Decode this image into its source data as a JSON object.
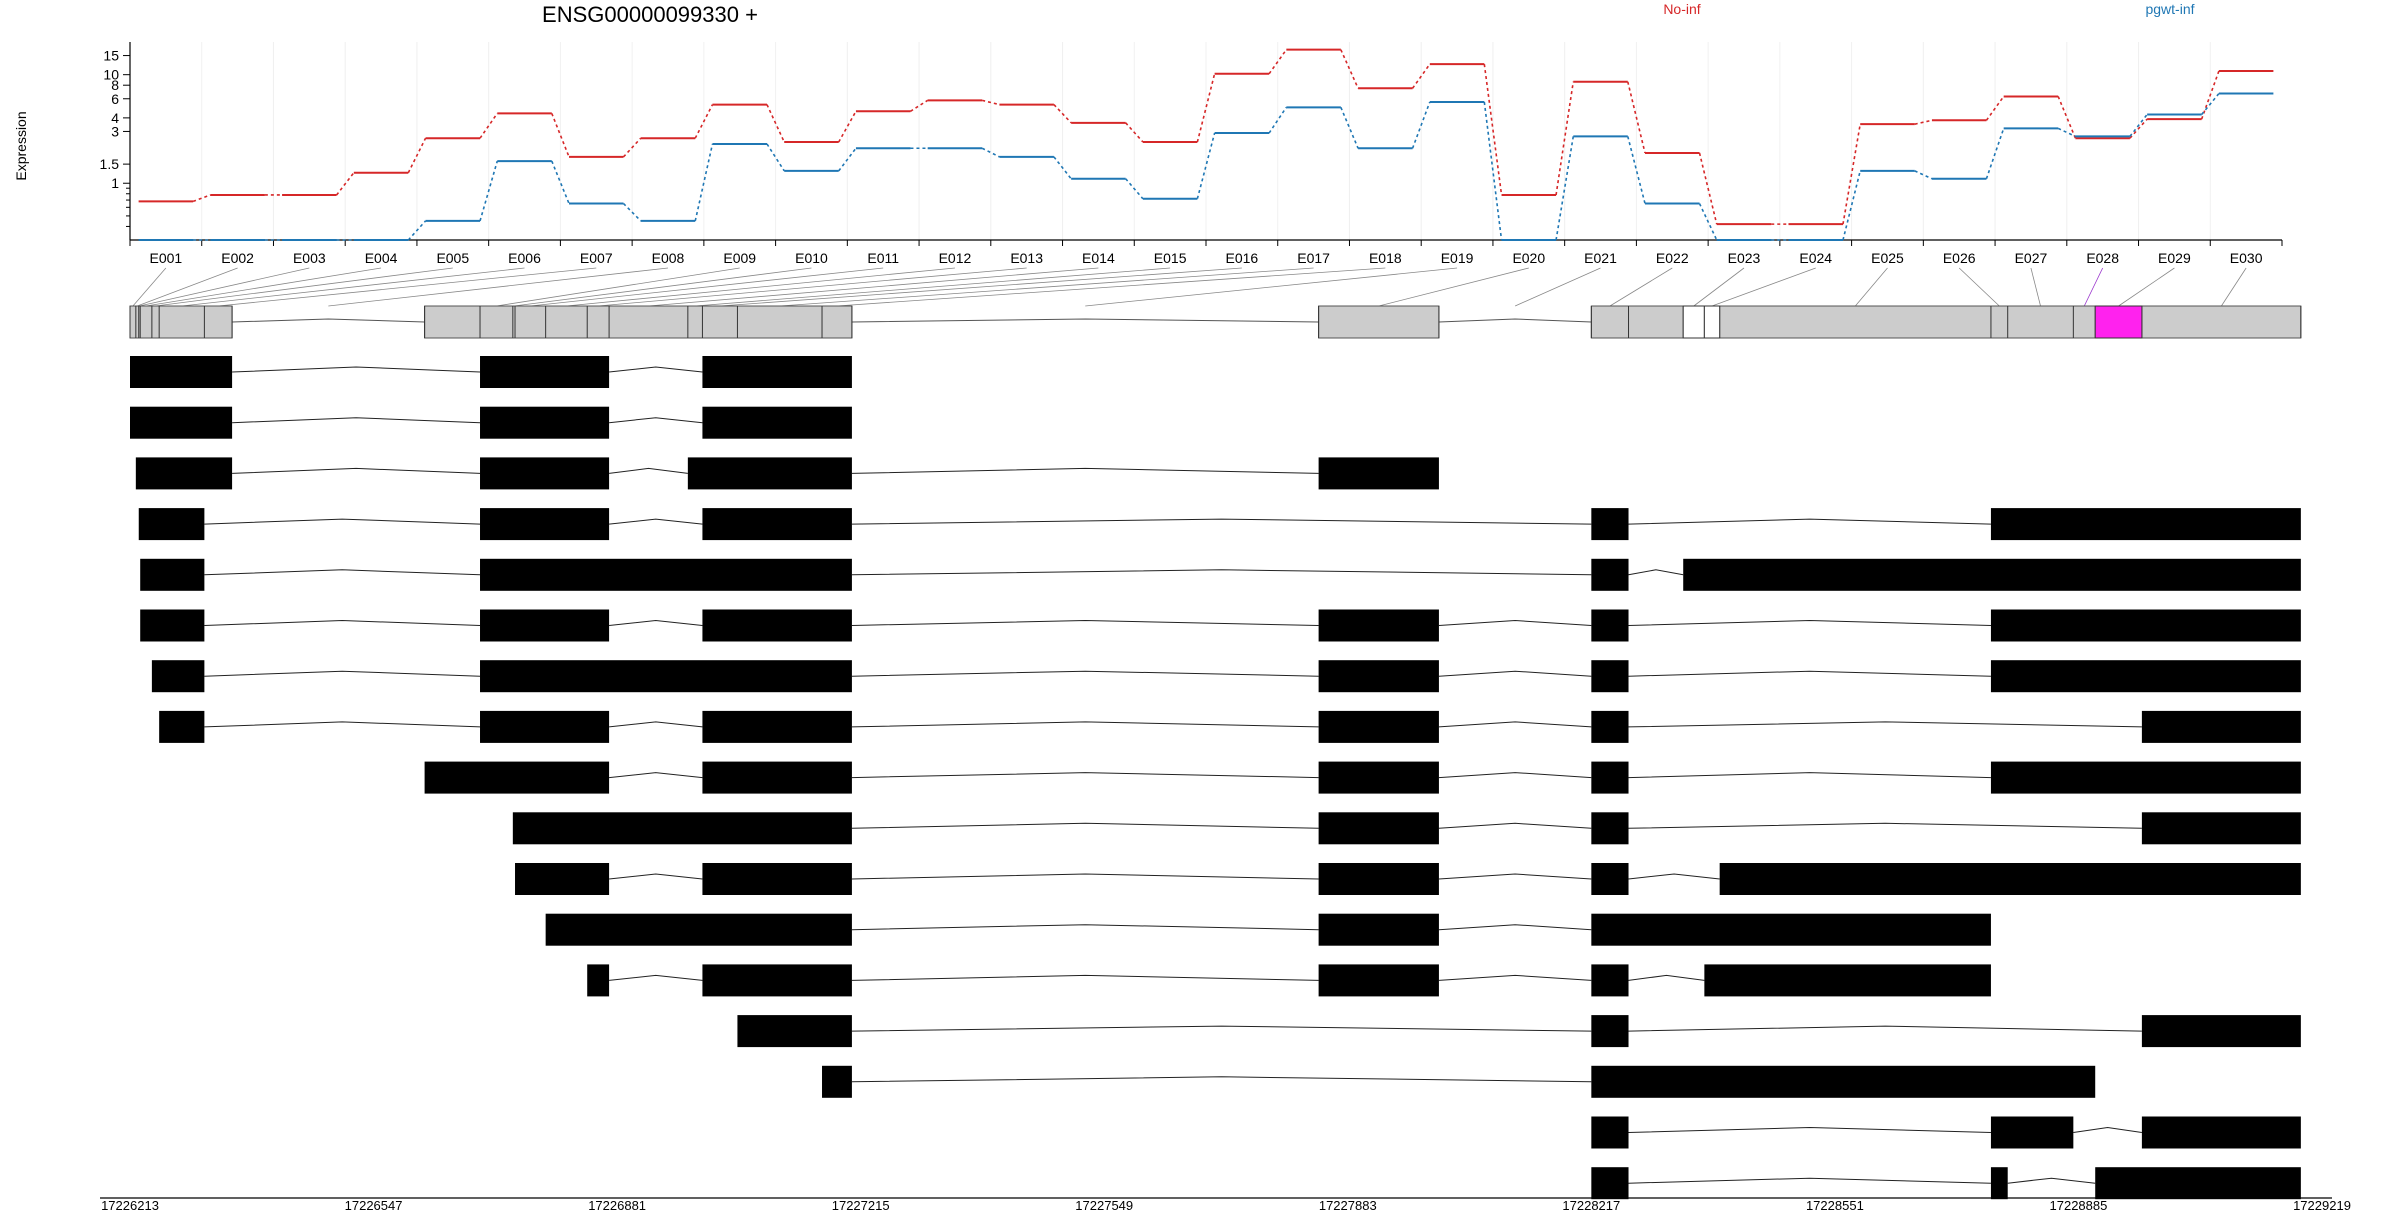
{
  "chart_data": {
    "type": "line",
    "title": "ENSG00000099330 +",
    "ylabel": "Expression",
    "ylim": [
      0.3,
      20
    ],
    "y_scale": "log",
    "y_ticks": [
      1,
      1.5,
      3,
      4,
      6,
      8,
      10,
      15
    ],
    "y_tick_labels": [
      "1",
      "1.5",
      "3",
      "4",
      "6",
      "8",
      "10",
      "15"
    ],
    "grid": true,
    "legend_placement": "top-right",
    "categories": [
      "E001",
      "E002",
      "E003",
      "E004",
      "E005",
      "E006",
      "E007",
      "E008",
      "E009",
      "E010",
      "E011",
      "E012",
      "E013",
      "E014",
      "E015",
      "E016",
      "E017",
      "E018",
      "E019",
      "E020",
      "E021",
      "E022",
      "E023",
      "E024",
      "E025",
      "E026",
      "E027",
      "E028",
      "E029",
      "E030"
    ],
    "series": [
      {
        "name": "No-inf",
        "color": "#d62728",
        "values": [
          0.68,
          0.78,
          0.78,
          1.25,
          2.6,
          4.4,
          1.75,
          2.6,
          5.3,
          2.4,
          4.6,
          5.8,
          5.3,
          3.6,
          2.4,
          10.2,
          17.0,
          7.5,
          12.5,
          0.78,
          8.6,
          1.9,
          0.42,
          0.42,
          3.5,
          3.8,
          6.3,
          2.6,
          3.9,
          10.8
        ]
      },
      {
        "name": "pgwt-inf",
        "color": "#1f77b4",
        "values": [
          0.3,
          0.3,
          0.3,
          0.3,
          0.45,
          1.6,
          0.65,
          0.45,
          2.3,
          1.3,
          2.1,
          2.1,
          1.75,
          1.1,
          0.72,
          2.9,
          5.0,
          2.1,
          5.6,
          0.3,
          2.7,
          0.65,
          0.3,
          0.3,
          1.3,
          1.1,
          3.2,
          2.7,
          4.3,
          6.7
        ]
      }
    ],
    "gene_model": {
      "color_default": "#cccccc",
      "color_highlight": "#ff22ee",
      "color_spliced": "#ffffff",
      "exons": [
        {
          "id": "E001",
          "start": 0,
          "end": 0.0145
        },
        {
          "id": "E002",
          "start": 0.0145,
          "end": 0.042
        },
        {
          "id": "E003",
          "start": 0.042,
          "end": 0.186
        },
        {
          "id": "E004",
          "start": 0.186,
          "end": 0.273
        },
        {
          "id": "E005",
          "start": 0.273,
          "end": 0.312
        },
        {
          "id": "E006",
          "start": 0.312,
          "end": 0.314
        },
        {
          "id": "E007",
          "start": 0.314,
          "end": 0.369
        },
        {
          "id": "E008",
          "start": 0.369,
          "end": 0.395
        },
        {
          "id": "E009",
          "start": 0.395,
          "end": 0.434
        },
        {
          "id": "E010",
          "start": 0.434,
          "end": 0.436
        },
        {
          "id": "E011",
          "start": 0.436,
          "end": 0.478
        },
        {
          "id": "E012",
          "start": 0.478,
          "end": 0.533
        },
        {
          "id": "E013",
          "start": 0.533,
          "end": 0.648
        },
        {
          "id": "E014",
          "start": 0.648,
          "end": 0.663
        },
        {
          "id": "E015",
          "start": 0.663,
          "end": 1.0
        },
        {
          "id": "E016",
          "start": 1.0,
          "end": 1.0
        },
        {
          "id": "E017",
          "start": 1.0,
          "end": 1.0
        },
        {
          "id": "E018",
          "start": 0.0,
          "end": 0.0
        },
        {
          "id": "E019",
          "start": 0.0,
          "end": 0.0
        },
        {
          "id": "E020",
          "start": 0.0,
          "end": 0.0
        },
        {
          "id": "E021",
          "start": 0.0,
          "end": 0.0
        },
        {
          "id": "E022",
          "start": 0.0,
          "end": 0.0
        },
        {
          "id": "E023",
          "start": 0.0,
          "end": 0.0
        },
        {
          "id": "E024",
          "start": 0.0,
          "end": 0.0
        },
        {
          "id": "E025",
          "start": 0.0,
          "end": 0.0
        },
        {
          "id": "E026",
          "start": 0.0,
          "end": 0.0
        },
        {
          "id": "E027",
          "start": 0.0,
          "end": 0.0
        },
        {
          "id": "E028",
          "start": 0.0,
          "end": 0.0
        },
        {
          "id": "E029",
          "start": 0.0,
          "end": 0.0
        },
        {
          "id": "E030",
          "start": 0.0,
          "end": 0.0
        }
      ]
    },
    "genomic_axis": {
      "min": 17226213,
      "max": 17229219,
      "ticks": [
        "17226213",
        "17226547",
        "17226881",
        "17227215",
        "17227549",
        "17227883",
        "17228217",
        "17228551",
        "17228885",
        "17229219"
      ]
    },
    "transcripts": [
      [
        [
          17226213,
          17226353
        ],
        [
          17226693,
          17226870
        ],
        [
          17226998,
          17227203
        ]
      ],
      [
        [
          17226213,
          17226353
        ],
        [
          17226693,
          17226870
        ],
        [
          17226998,
          17227203
        ]
      ],
      [
        [
          17226221,
          17226353
        ],
        [
          17226693,
          17226870
        ],
        [
          17226978,
          17227203
        ],
        [
          17227843,
          17228008
        ]
      ],
      [
        [
          17226225,
          17226315
        ],
        [
          17226693,
          17226870
        ],
        [
          17226998,
          17227203
        ],
        [
          17228217,
          17228268
        ],
        [
          17228765,
          17229190
        ]
      ],
      [
        [
          17226227,
          17226315
        ],
        [
          17226693,
          17227203
        ],
        [
          17228217,
          17228268
        ],
        [
          17228343,
          17229190
        ]
      ],
      [
        [
          17226227,
          17226315
        ],
        [
          17226693,
          17226870
        ],
        [
          17226998,
          17227203
        ],
        [
          17227843,
          17228008
        ],
        [
          17228217,
          17228268
        ],
        [
          17228765,
          17229190
        ]
      ],
      [
        [
          17226243,
          17226315
        ],
        [
          17226693,
          17227203
        ],
        [
          17227843,
          17228008
        ],
        [
          17228217,
          17228268
        ],
        [
          17228765,
          17229190
        ]
      ],
      [
        [
          17226253,
          17226315
        ],
        [
          17226693,
          17226870
        ],
        [
          17226998,
          17227203
        ],
        [
          17227843,
          17228008
        ],
        [
          17228217,
          17228268
        ],
        [
          17228972,
          17229190
        ]
      ],
      [
        [
          17226617,
          17226870
        ],
        [
          17226998,
          17227203
        ],
        [
          17227843,
          17228008
        ],
        [
          17228217,
          17228268
        ],
        [
          17228765,
          17229190
        ]
      ],
      [
        [
          17226738,
          17227203
        ],
        [
          17227843,
          17228008
        ],
        [
          17228217,
          17228268
        ],
        [
          17228972,
          17229190
        ]
      ],
      [
        [
          17226741,
          17226870
        ],
        [
          17226998,
          17227203
        ],
        [
          17227843,
          17228008
        ],
        [
          17228217,
          17228268
        ],
        [
          17228393,
          17229190
        ]
      ],
      [
        [
          17226783,
          17227203
        ],
        [
          17227843,
          17228008
        ],
        [
          17228217,
          17228765
        ]
      ],
      [
        [
          17226840,
          17226870
        ],
        [
          17226998,
          17227203
        ],
        [
          17227843,
          17228008
        ],
        [
          17228217,
          17228268
        ],
        [
          17228372,
          17228765
        ]
      ],
      [
        [
          17227046,
          17227203
        ],
        [
          17228217,
          17228268
        ],
        [
          17228972,
          17229190
        ]
      ],
      [
        [
          17227162,
          17227203
        ],
        [
          17228217,
          17228908
        ]
      ],
      [
        [
          17228217,
          17228268
        ],
        [
          17228765,
          17228878
        ],
        [
          17228972,
          17229190
        ]
      ],
      [
        [
          17228217,
          17228268
        ],
        [
          17228765,
          17228788
        ],
        [
          17228908,
          17229190
        ]
      ]
    ]
  }
}
